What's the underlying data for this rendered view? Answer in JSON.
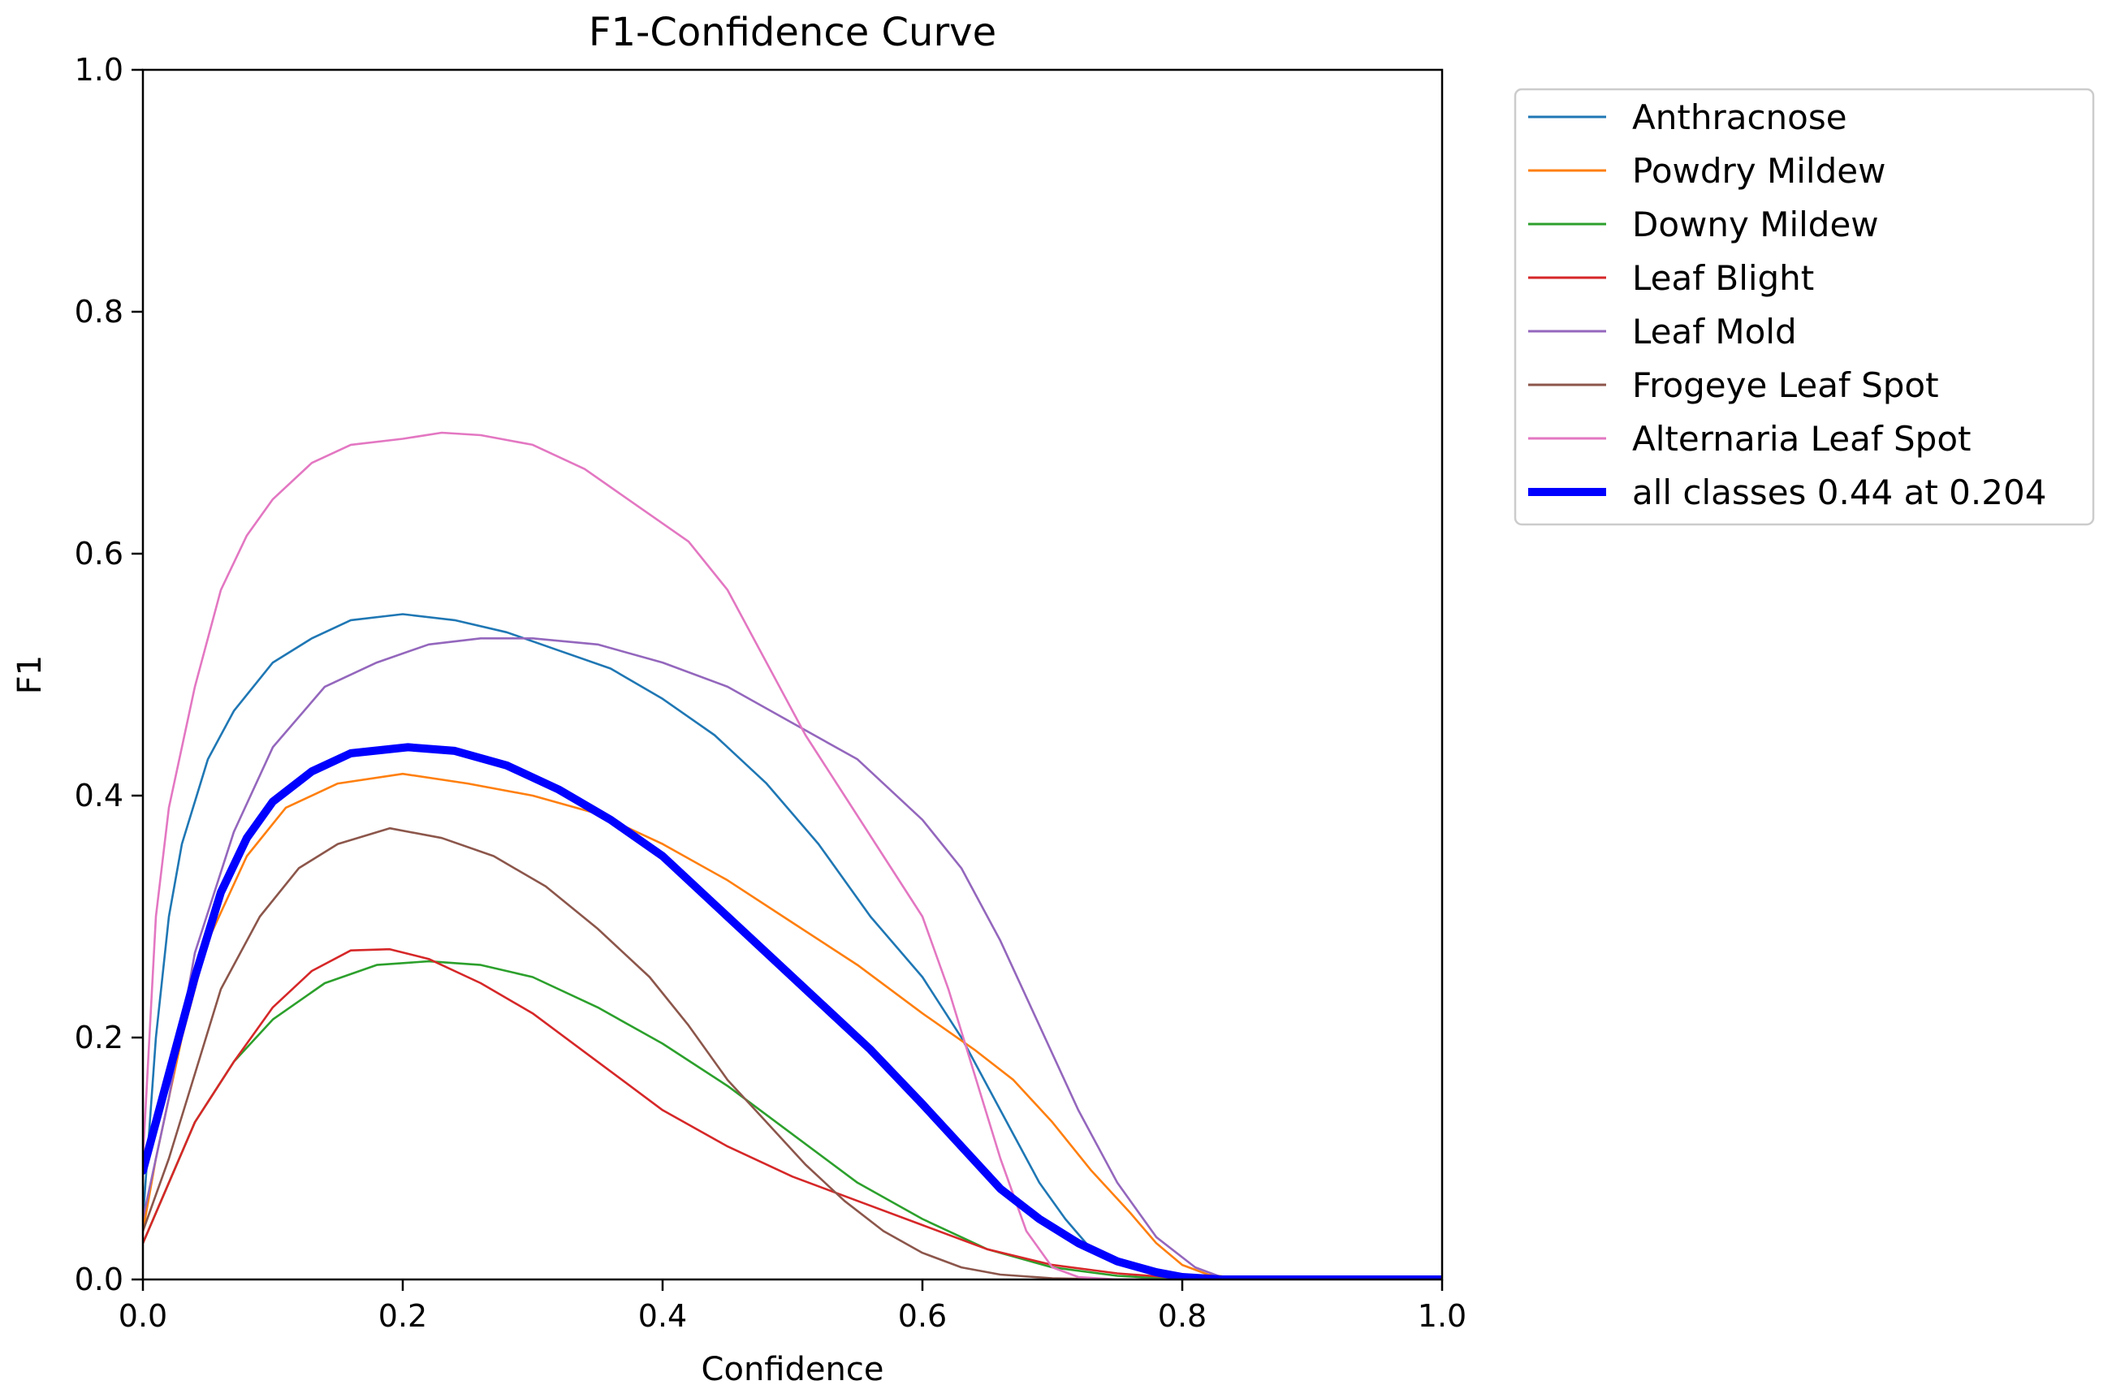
{
  "chart_data": {
    "type": "line",
    "title": "F1-Confidence Curve",
    "xlabel": "Confidence",
    "ylabel": "F1",
    "xlim": [
      0,
      1
    ],
    "ylim": [
      0,
      1
    ],
    "xticks": [
      "0.0",
      "0.2",
      "0.4",
      "0.6",
      "0.8",
      "1.0"
    ],
    "yticks": [
      "0.0",
      "0.2",
      "0.4",
      "0.6",
      "0.8",
      "1.0"
    ],
    "grid": false,
    "legend_position": "outside-top-right",
    "series": [
      {
        "name": "Anthracnose",
        "color": "#1f77b4",
        "width": "thin",
        "points": [
          [
            0,
            0.05
          ],
          [
            0.01,
            0.2
          ],
          [
            0.02,
            0.3
          ],
          [
            0.03,
            0.36
          ],
          [
            0.05,
            0.43
          ],
          [
            0.07,
            0.47
          ],
          [
            0.1,
            0.51
          ],
          [
            0.13,
            0.53
          ],
          [
            0.16,
            0.545
          ],
          [
            0.2,
            0.55
          ],
          [
            0.24,
            0.545
          ],
          [
            0.28,
            0.535
          ],
          [
            0.32,
            0.52
          ],
          [
            0.36,
            0.505
          ],
          [
            0.4,
            0.48
          ],
          [
            0.44,
            0.45
          ],
          [
            0.48,
            0.41
          ],
          [
            0.52,
            0.36
          ],
          [
            0.56,
            0.3
          ],
          [
            0.6,
            0.25
          ],
          [
            0.63,
            0.2
          ],
          [
            0.65,
            0.16
          ],
          [
            0.67,
            0.12
          ],
          [
            0.69,
            0.08
          ],
          [
            0.71,
            0.05
          ],
          [
            0.73,
            0.025
          ],
          [
            0.76,
            0.01
          ],
          [
            0.8,
            0.003
          ],
          [
            0.84,
            0
          ],
          [
            1,
            0
          ]
        ]
      },
      {
        "name": "Powdry Mildew",
        "color": "#ff7f0e",
        "width": "thin",
        "points": [
          [
            0,
            0.04
          ],
          [
            0.01,
            0.1
          ],
          [
            0.03,
            0.2
          ],
          [
            0.05,
            0.28
          ],
          [
            0.08,
            0.35
          ],
          [
            0.11,
            0.39
          ],
          [
            0.15,
            0.41
          ],
          [
            0.2,
            0.418
          ],
          [
            0.25,
            0.41
          ],
          [
            0.3,
            0.4
          ],
          [
            0.35,
            0.385
          ],
          [
            0.4,
            0.36
          ],
          [
            0.45,
            0.33
          ],
          [
            0.5,
            0.295
          ],
          [
            0.55,
            0.26
          ],
          [
            0.6,
            0.22
          ],
          [
            0.64,
            0.19
          ],
          [
            0.67,
            0.165
          ],
          [
            0.7,
            0.13
          ],
          [
            0.73,
            0.09
          ],
          [
            0.76,
            0.055
          ],
          [
            0.78,
            0.03
          ],
          [
            0.8,
            0.012
          ],
          [
            0.82,
            0.004
          ],
          [
            0.85,
            0
          ],
          [
            1,
            0
          ]
        ]
      },
      {
        "name": "Downy Mildew",
        "color": "#2ca02c",
        "width": "thin",
        "points": [
          [
            0,
            0.03
          ],
          [
            0.02,
            0.08
          ],
          [
            0.04,
            0.13
          ],
          [
            0.07,
            0.18
          ],
          [
            0.1,
            0.215
          ],
          [
            0.14,
            0.245
          ],
          [
            0.18,
            0.26
          ],
          [
            0.22,
            0.263
          ],
          [
            0.26,
            0.26
          ],
          [
            0.3,
            0.25
          ],
          [
            0.35,
            0.225
          ],
          [
            0.4,
            0.195
          ],
          [
            0.45,
            0.16
          ],
          [
            0.5,
            0.12
          ],
          [
            0.55,
            0.08
          ],
          [
            0.6,
            0.05
          ],
          [
            0.65,
            0.025
          ],
          [
            0.7,
            0.01
          ],
          [
            0.75,
            0.003
          ],
          [
            0.8,
            0
          ],
          [
            1,
            0
          ]
        ]
      },
      {
        "name": "Leaf Blight",
        "color": "#d62728",
        "width": "thin",
        "points": [
          [
            0,
            0.03
          ],
          [
            0.02,
            0.08
          ],
          [
            0.04,
            0.13
          ],
          [
            0.07,
            0.18
          ],
          [
            0.1,
            0.225
          ],
          [
            0.13,
            0.255
          ],
          [
            0.16,
            0.272
          ],
          [
            0.19,
            0.273
          ],
          [
            0.22,
            0.265
          ],
          [
            0.26,
            0.245
          ],
          [
            0.3,
            0.22
          ],
          [
            0.35,
            0.18
          ],
          [
            0.4,
            0.14
          ],
          [
            0.45,
            0.11
          ],
          [
            0.5,
            0.085
          ],
          [
            0.55,
            0.065
          ],
          [
            0.6,
            0.045
          ],
          [
            0.65,
            0.025
          ],
          [
            0.7,
            0.012
          ],
          [
            0.75,
            0.005
          ],
          [
            0.8,
            0.001
          ],
          [
            0.85,
            0
          ],
          [
            1,
            0
          ]
        ]
      },
      {
        "name": "Leaf Mold",
        "color": "#9467bd",
        "width": "thin",
        "points": [
          [
            0,
            0.05
          ],
          [
            0.02,
            0.15
          ],
          [
            0.04,
            0.27
          ],
          [
            0.07,
            0.37
          ],
          [
            0.1,
            0.44
          ],
          [
            0.14,
            0.49
          ],
          [
            0.18,
            0.51
          ],
          [
            0.22,
            0.525
          ],
          [
            0.26,
            0.53
          ],
          [
            0.3,
            0.53
          ],
          [
            0.35,
            0.525
          ],
          [
            0.4,
            0.51
          ],
          [
            0.45,
            0.49
          ],
          [
            0.5,
            0.46
          ],
          [
            0.55,
            0.43
          ],
          [
            0.6,
            0.38
          ],
          [
            0.63,
            0.34
          ],
          [
            0.66,
            0.28
          ],
          [
            0.69,
            0.21
          ],
          [
            0.72,
            0.14
          ],
          [
            0.75,
            0.08
          ],
          [
            0.78,
            0.035
          ],
          [
            0.81,
            0.01
          ],
          [
            0.83,
            0.002
          ],
          [
            0.86,
            0
          ],
          [
            1,
            0
          ]
        ]
      },
      {
        "name": "Frogeye Leaf Spot",
        "color": "#8c564b",
        "width": "thin",
        "points": [
          [
            0,
            0.04
          ],
          [
            0.02,
            0.1
          ],
          [
            0.04,
            0.17
          ],
          [
            0.06,
            0.24
          ],
          [
            0.09,
            0.3
          ],
          [
            0.12,
            0.34
          ],
          [
            0.15,
            0.36
          ],
          [
            0.19,
            0.373
          ],
          [
            0.23,
            0.365
          ],
          [
            0.27,
            0.35
          ],
          [
            0.31,
            0.325
          ],
          [
            0.35,
            0.29
          ],
          [
            0.39,
            0.25
          ],
          [
            0.42,
            0.21
          ],
          [
            0.45,
            0.165
          ],
          [
            0.48,
            0.13
          ],
          [
            0.51,
            0.095
          ],
          [
            0.54,
            0.065
          ],
          [
            0.57,
            0.04
          ],
          [
            0.6,
            0.022
          ],
          [
            0.63,
            0.01
          ],
          [
            0.66,
            0.004
          ],
          [
            0.7,
            0.001
          ],
          [
            0.75,
            0
          ],
          [
            1,
            0
          ]
        ]
      },
      {
        "name": "Alternaria Leaf Spot",
        "color": "#e377c2",
        "width": "thin",
        "points": [
          [
            0,
            0.1
          ],
          [
            0.01,
            0.3
          ],
          [
            0.02,
            0.39
          ],
          [
            0.04,
            0.49
          ],
          [
            0.06,
            0.57
          ],
          [
            0.08,
            0.615
          ],
          [
            0.1,
            0.645
          ],
          [
            0.13,
            0.675
          ],
          [
            0.16,
            0.69
          ],
          [
            0.2,
            0.695
          ],
          [
            0.23,
            0.7
          ],
          [
            0.26,
            0.698
          ],
          [
            0.3,
            0.69
          ],
          [
            0.34,
            0.67
          ],
          [
            0.38,
            0.64
          ],
          [
            0.42,
            0.61
          ],
          [
            0.45,
            0.57
          ],
          [
            0.48,
            0.51
          ],
          [
            0.51,
            0.45
          ],
          [
            0.54,
            0.4
          ],
          [
            0.57,
            0.35
          ],
          [
            0.6,
            0.3
          ],
          [
            0.62,
            0.24
          ],
          [
            0.64,
            0.17
          ],
          [
            0.66,
            0.1
          ],
          [
            0.68,
            0.04
          ],
          [
            0.7,
            0.01
          ],
          [
            0.72,
            0.002
          ],
          [
            0.75,
            0
          ],
          [
            1,
            0
          ]
        ]
      },
      {
        "name": "all classes 0.44 at 0.204",
        "color": "#0000ff",
        "width": "thick",
        "points": [
          [
            0,
            0.09
          ],
          [
            0.02,
            0.17
          ],
          [
            0.04,
            0.25
          ],
          [
            0.06,
            0.32
          ],
          [
            0.08,
            0.365
          ],
          [
            0.1,
            0.395
          ],
          [
            0.13,
            0.42
          ],
          [
            0.16,
            0.435
          ],
          [
            0.204,
            0.44
          ],
          [
            0.24,
            0.437
          ],
          [
            0.28,
            0.425
          ],
          [
            0.32,
            0.405
          ],
          [
            0.36,
            0.38
          ],
          [
            0.4,
            0.35
          ],
          [
            0.44,
            0.31
          ],
          [
            0.48,
            0.27
          ],
          [
            0.52,
            0.23
          ],
          [
            0.56,
            0.19
          ],
          [
            0.6,
            0.145
          ],
          [
            0.63,
            0.11
          ],
          [
            0.66,
            0.075
          ],
          [
            0.69,
            0.05
          ],
          [
            0.72,
            0.03
          ],
          [
            0.75,
            0.015
          ],
          [
            0.78,
            0.006
          ],
          [
            0.8,
            0.002
          ],
          [
            0.83,
            0
          ],
          [
            1,
            0
          ]
        ]
      }
    ]
  }
}
